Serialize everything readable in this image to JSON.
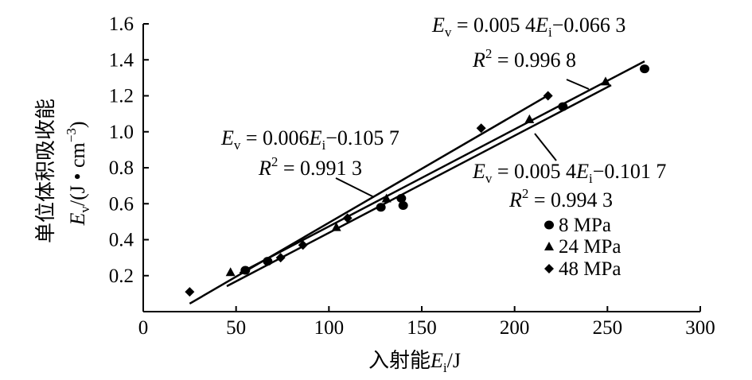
{
  "chart_data": {
    "type": "scatter",
    "xlabel_cn": "入射能",
    "xlabel_var": "E",
    "xlabel_sub": "i",
    "xlabel_unit": "/J",
    "ylabel_line1": "单位体积吸收能",
    "ylabel_var": "E",
    "ylabel_sub": "v",
    "ylabel_unit_pre": "/(J • cm",
    "ylabel_unit_sup": "−3",
    "ylabel_unit_post": ")",
    "xlim": [
      0,
      300
    ],
    "ylim": [
      0,
      1.6
    ],
    "xticks": [
      "0",
      "50",
      "100",
      "150",
      "200",
      "250",
      "300"
    ],
    "yticks": [
      "0.2",
      "0.4",
      "0.6",
      "0.8",
      "1.0",
      "1.2",
      "1.4",
      "1.6"
    ],
    "series": [
      {
        "name": "8 MPa",
        "marker": "circle",
        "x": [
          55,
          67,
          128,
          139,
          140,
          226,
          270
        ],
        "y": [
          0.23,
          0.28,
          0.58,
          0.63,
          0.59,
          1.14,
          1.35
        ],
        "fit": {
          "slope": 0.0054,
          "intercept": -0.0663,
          "x_range": [
            52,
            270
          ]
        },
        "equation": {
          "lhs": "E",
          "lhs_sub": "v",
          "rhs_pre": "= 0.005 4",
          "var": "E",
          "var_sub": "i",
          "rhs_post": "−0.066 3"
        },
        "r2": {
          "r": "R",
          "sup": "2",
          "text": "= 0.996 8"
        }
      },
      {
        "name": "24 MPa",
        "marker": "triangle",
        "x": [
          47,
          104,
          131,
          208,
          249
        ],
        "y": [
          0.22,
          0.47,
          0.63,
          1.07,
          1.28
        ],
        "fit": {
          "slope": 0.0054,
          "intercept": -0.1017,
          "x_range": [
            45,
            252
          ]
        },
        "equation": {
          "lhs": "E",
          "lhs_sub": "v",
          "rhs_pre": "= 0.005 4",
          "var": "E",
          "var_sub": "i",
          "rhs_post": "−0.101 7"
        },
        "r2": {
          "r": "R",
          "sup": "2",
          "text": "= 0.994 3"
        }
      },
      {
        "name": "48 MPa",
        "marker": "diamond",
        "x": [
          25,
          74,
          86,
          110,
          182,
          218
        ],
        "y": [
          0.11,
          0.3,
          0.37,
          0.52,
          1.02,
          1.2
        ],
        "fit": {
          "slope": 0.006,
          "intercept": -0.1057,
          "x_range": [
            25,
            218
          ]
        },
        "equation": {
          "lhs": "E",
          "lhs_sub": "v",
          "rhs_pre": "= 0.006",
          "var": "E",
          "var_sub": "i",
          "rhs_post": "−0.105 7"
        },
        "r2": {
          "r": "R",
          "sup": "2",
          "text": "= 0.991 3"
        }
      }
    ],
    "legend_position": "bottom-right",
    "grid": false
  }
}
